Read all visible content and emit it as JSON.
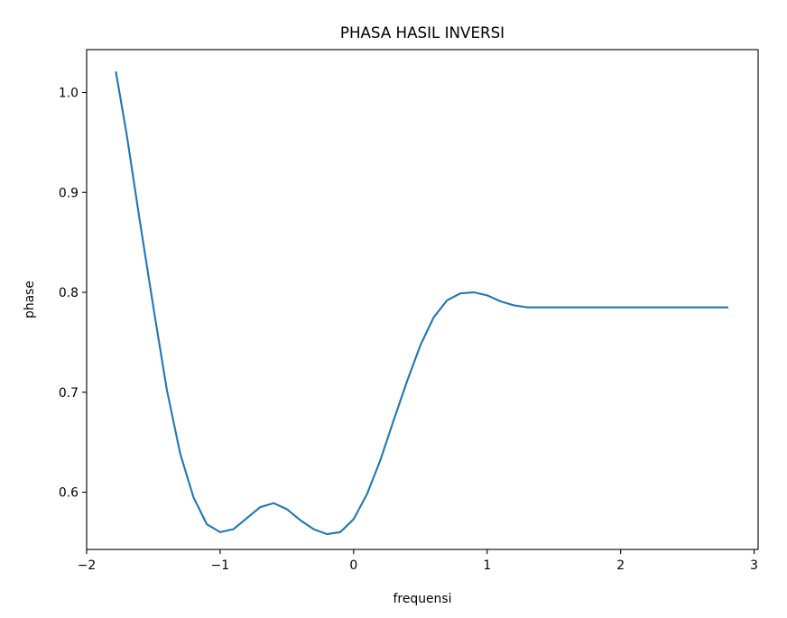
{
  "chart_data": {
    "type": "line",
    "title": "PHASA HASIL INVERSI",
    "xlabel": "frequensi",
    "ylabel": "phase",
    "xlim": [
      -2.0,
      3.03
    ],
    "ylim": [
      0.5427,
      1.0429
    ],
    "xticks": [
      -2,
      -1,
      0,
      1,
      2,
      3
    ],
    "xtick_labels": [
      "−2",
      "−1",
      "0",
      "1",
      "2",
      "3"
    ],
    "yticks": [
      0.6,
      0.7,
      0.8,
      0.9,
      1.0
    ],
    "ytick_labels": [
      "0.6",
      "0.7",
      "0.8",
      "0.9",
      "1.0"
    ],
    "grid": false,
    "series": [
      {
        "color": "#1f77b4",
        "x": [
          -1.78,
          -1.7,
          -1.6,
          -1.5,
          -1.4,
          -1.3,
          -1.2,
          -1.1,
          -1.0,
          -0.9,
          -0.8,
          -0.7,
          -0.6,
          -0.5,
          -0.4,
          -0.3,
          -0.2,
          -0.1,
          0.0,
          0.1,
          0.2,
          0.3,
          0.4,
          0.5,
          0.6,
          0.7,
          0.8,
          0.9,
          1.0,
          1.1,
          1.2,
          1.3,
          1.4,
          1.5,
          1.6,
          1.7,
          1.8,
          2.0,
          2.2,
          2.4,
          2.6,
          2.8
        ],
        "y": [
          1.02,
          0.958,
          0.87,
          0.785,
          0.703,
          0.639,
          0.595,
          0.568,
          0.56,
          0.563,
          0.574,
          0.585,
          0.589,
          0.583,
          0.572,
          0.563,
          0.558,
          0.56,
          0.573,
          0.598,
          0.632,
          0.672,
          0.711,
          0.747,
          0.775,
          0.792,
          0.799,
          0.8,
          0.797,
          0.791,
          0.787,
          0.785,
          0.785,
          0.785,
          0.785,
          0.785,
          0.785,
          0.785,
          0.785,
          0.785,
          0.785,
          0.785
        ]
      }
    ]
  }
}
